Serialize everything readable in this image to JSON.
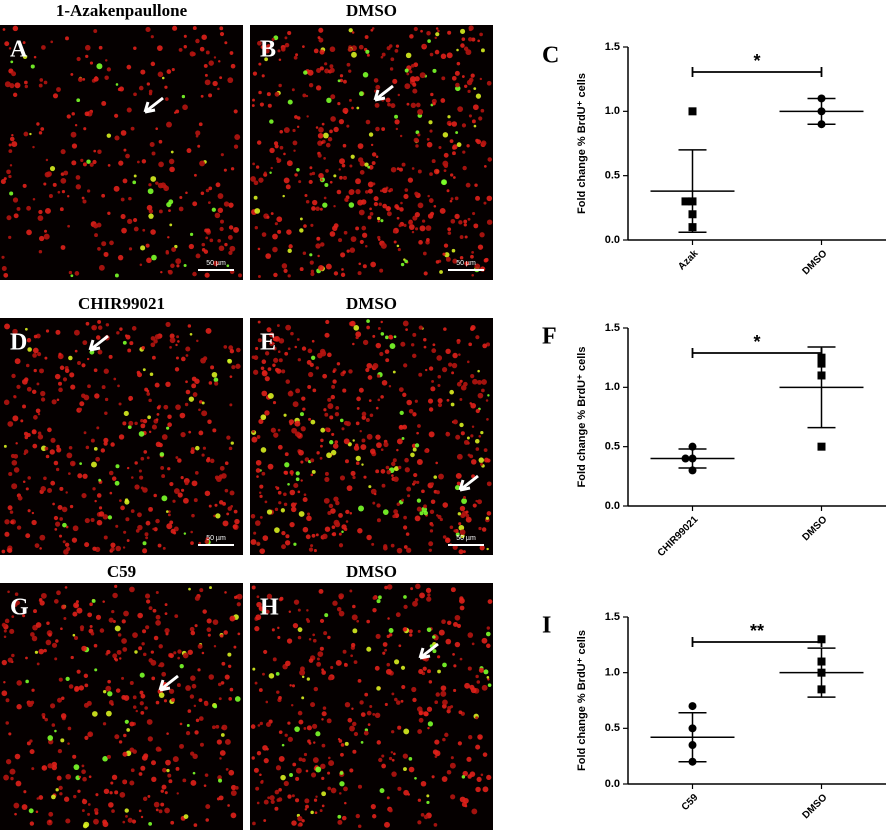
{
  "panels": [
    {
      "letter": "A",
      "title": "1-Azakenpaullone",
      "scale_bar": "50 µm"
    },
    {
      "letter": "B",
      "title": "DMSO",
      "scale_bar": "50 µm"
    },
    {
      "letter": "D",
      "title": "CHIR99021",
      "scale_bar": "50 µm"
    },
    {
      "letter": "E",
      "title": "DMSO",
      "scale_bar": "50 µm"
    },
    {
      "letter": "G",
      "title": "C59"
    },
    {
      "letter": "H",
      "title": "DMSO"
    }
  ],
  "chart_data": [
    {
      "type": "strip",
      "label": "C",
      "ylabel": "Fold change % BrdU⁺ cells",
      "significance": "*",
      "ylim": [
        0,
        1.5
      ],
      "yticks": [
        {
          "value": 0,
          "label": "0.0"
        },
        0.5,
        {
          "value": 1,
          "label": "1.0"
        },
        1.5
      ],
      "series": [
        {
          "name": "Azak",
          "marker": "square",
          "color": "#000000",
          "values": [
            1.0,
            0.3,
            0.3,
            0.2,
            0.1
          ],
          "mean": 0.38,
          "error": 0.32
        },
        {
          "name": "DMSO",
          "marker": "circle",
          "color": "#000000",
          "values": [
            1.1,
            1.0,
            0.9
          ],
          "mean": 1.0,
          "error": 0.1
        }
      ]
    },
    {
      "type": "strip",
      "label": "F",
      "ylabel": "Fold change % BrdU⁺ cells",
      "significance": "*",
      "ylim": [
        0,
        1.5
      ],
      "yticks": [
        {
          "value": 0,
          "label": "0.0"
        },
        0.5,
        {
          "value": 1,
          "label": "1.0"
        },
        1.5
      ],
      "series": [
        {
          "name": "CHIR99021",
          "marker": "circle",
          "color": "#000000",
          "values": [
            0.5,
            0.4,
            0.4,
            0.3
          ],
          "mean": 0.4,
          "error": 0.08
        },
        {
          "name": "DMSO",
          "marker": "square",
          "color": "#000000",
          "values": [
            1.25,
            1.2,
            1.1,
            0.5
          ],
          "mean": 1.0,
          "error": 0.34
        }
      ]
    },
    {
      "type": "strip",
      "label": "I",
      "ylabel": "Fold change % BrdU⁺ cells",
      "significance": "**",
      "ylim": [
        0,
        1.5
      ],
      "yticks": [
        {
          "value": 0,
          "label": "0.0"
        },
        0.5,
        {
          "value": 1,
          "label": "1.0"
        },
        1.5
      ],
      "series": [
        {
          "name": "C59",
          "marker": "circle",
          "color": "#000000",
          "values": [
            0.7,
            0.5,
            0.35,
            0.2
          ],
          "mean": 0.42,
          "error": 0.22
        },
        {
          "name": "DMSO",
          "marker": "square",
          "color": "#000000",
          "values": [
            1.3,
            1.1,
            1.0,
            0.85
          ],
          "mean": 1.0,
          "error": 0.22
        }
      ]
    }
  ]
}
